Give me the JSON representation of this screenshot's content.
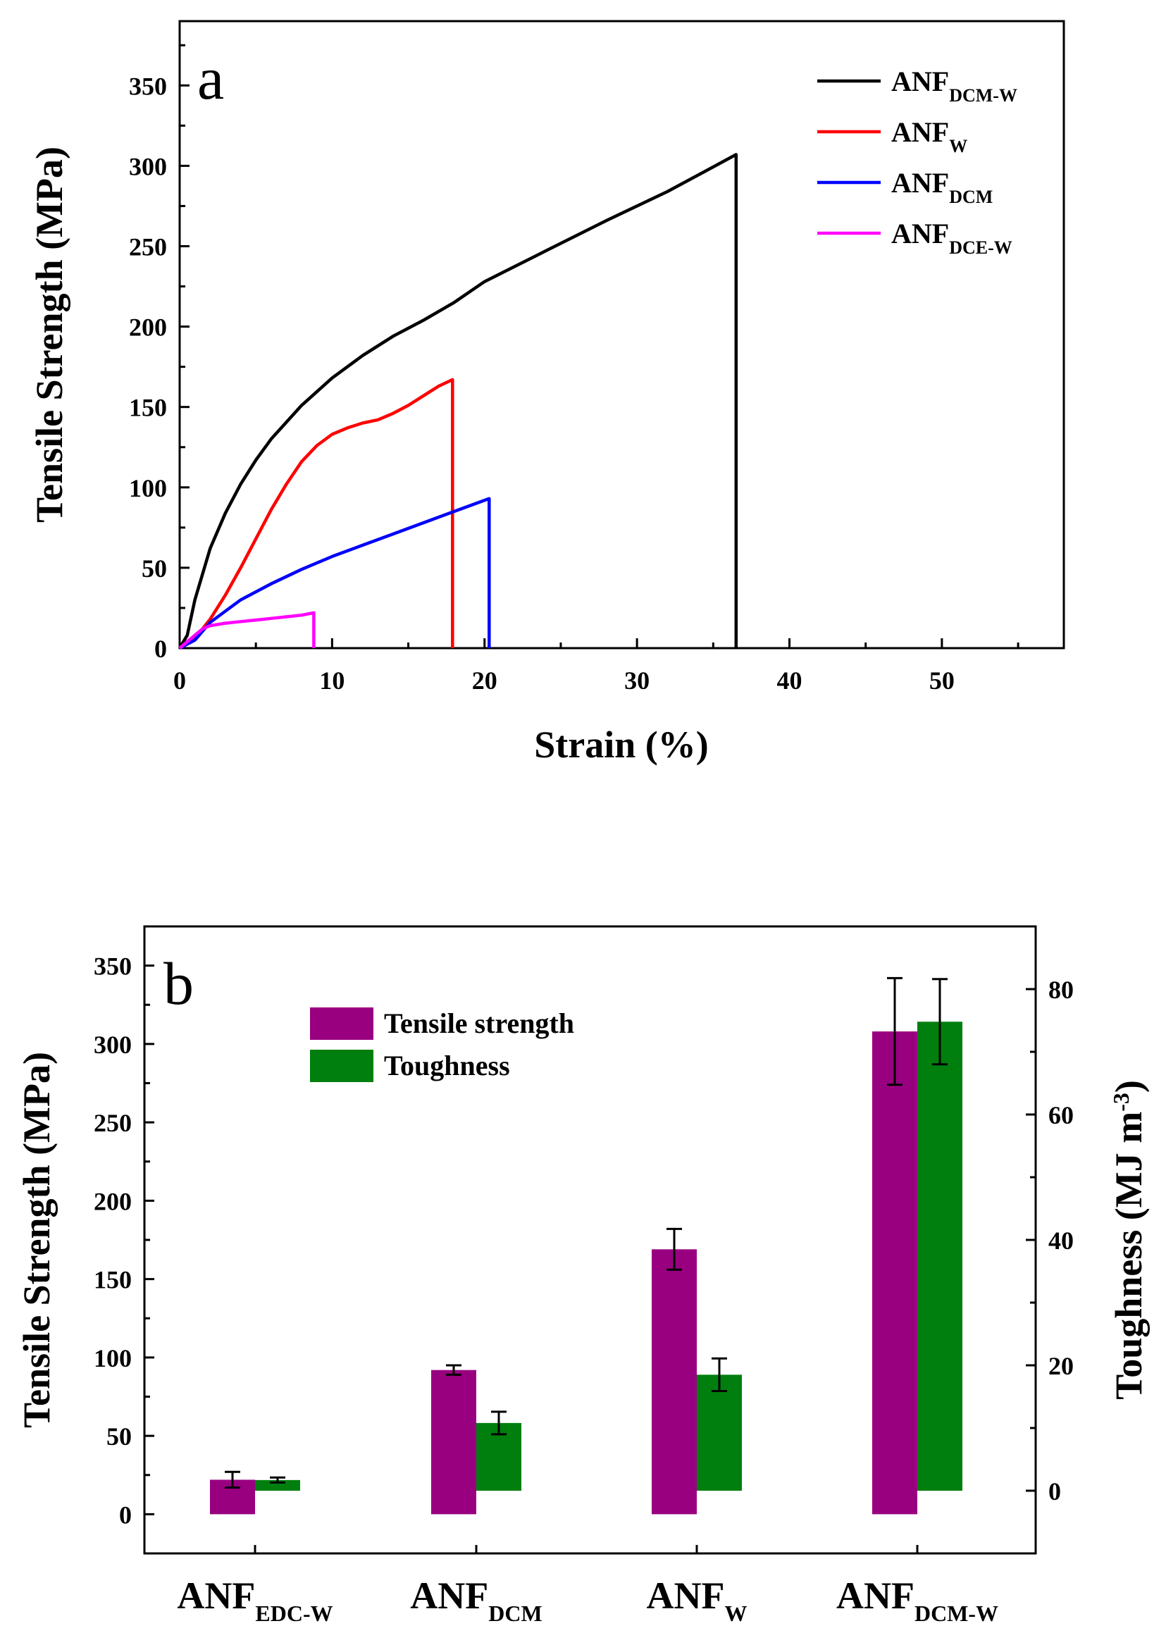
{
  "chart_data": [
    {
      "type": "line",
      "panel_label": "a",
      "xlabel": "Strain (%)",
      "ylabel": "Tensile Strength (MPa)",
      "xlim": [
        0,
        58
      ],
      "ylim": [
        0,
        390
      ],
      "xticks": [
        0,
        10,
        20,
        30,
        40,
        50
      ],
      "yticks": [
        0,
        50,
        100,
        150,
        200,
        250,
        300,
        350
      ],
      "xtick_labels": [
        "0",
        "10",
        "20",
        "30",
        "40",
        "50"
      ],
      "ytick_labels": [
        "0",
        "50",
        "100",
        "150",
        "200",
        "250",
        "300",
        "350"
      ],
      "legend_position": "top-right",
      "series": [
        {
          "name": "ANF",
          "subscript": "DCM-W",
          "color": "#000000",
          "x": [
            0,
            0.5,
            1,
            2,
            3,
            4,
            5,
            6,
            8,
            10,
            12,
            14,
            16,
            18,
            20,
            24,
            28,
            32,
            36.5,
            36.5
          ],
          "y": [
            0,
            8,
            30,
            62,
            84,
            102,
            117,
            130,
            151,
            168,
            182,
            194,
            204,
            215,
            228,
            247,
            266,
            284,
            307,
            0
          ]
        },
        {
          "name": "ANF",
          "subscript": "W",
          "color": "#ff0000",
          "x": [
            0,
            1,
            2,
            3,
            4,
            5,
            6,
            7,
            8,
            9,
            10,
            11,
            12,
            13,
            14,
            15,
            16,
            17,
            17.9,
            17.9
          ],
          "y": [
            0,
            6,
            18,
            33,
            50,
            68,
            86,
            102,
            116,
            126,
            133,
            137,
            140,
            142,
            146,
            151,
            157,
            163,
            167,
            0
          ]
        },
        {
          "name": "ANF",
          "subscript": "DCM",
          "color": "#0000ff",
          "x": [
            0,
            1,
            2,
            3,
            4,
            6,
            8,
            10,
            12,
            14,
            16,
            18,
            20.3,
            20.3
          ],
          "y": [
            0,
            5,
            16,
            23,
            30,
            40,
            49,
            57,
            64,
            71,
            78,
            85,
            93,
            0
          ]
        },
        {
          "name": "ANF",
          "subscript": "DCE-W",
          "color": "#ff00ff",
          "x": [
            0,
            0.5,
            1,
            1.5,
            2,
            3,
            4,
            5,
            6,
            7,
            8,
            8.8,
            8.8
          ],
          "y": [
            0,
            4,
            8,
            12,
            14,
            15.5,
            16.5,
            17.5,
            18.5,
            19.5,
            20.5,
            22,
            0
          ]
        }
      ]
    },
    {
      "type": "bar",
      "panel_label": "b",
      "ylabel_left": "Tensile Strength (MPa)",
      "ylabel_right": "Toughness (MJ m",
      "ylabel_right_sup": "-3",
      "ylabel_right_close": ")",
      "ylim_left": [
        -25,
        375
      ],
      "ylim_right": [
        -10,
        90
      ],
      "yticks_left": [
        0,
        50,
        100,
        150,
        200,
        250,
        300,
        350
      ],
      "ytick_labels_left": [
        "0",
        "50",
        "100",
        "150",
        "200",
        "250",
        "300",
        "350"
      ],
      "yticks_right": [
        0,
        20,
        40,
        60,
        80
      ],
      "ytick_labels_right": [
        "0",
        "20",
        "40",
        "60",
        "80"
      ],
      "legend_position": "top-left",
      "categories": [
        {
          "name": "ANF",
          "subscript": "EDC-W"
        },
        {
          "name": "ANF",
          "subscript": "DCM"
        },
        {
          "name": "ANF",
          "subscript": "W"
        },
        {
          "name": "ANF",
          "subscript": "DCM-W"
        }
      ],
      "series": [
        {
          "name": "Tensile strength",
          "axis": "left",
          "color": "#990080",
          "values": [
            22,
            92,
            169,
            308
          ],
          "errors": [
            5,
            3,
            13,
            34
          ]
        },
        {
          "name": "Toughness",
          "axis": "right",
          "color": "#007f0e",
          "values": [
            1.7,
            10.8,
            18.5,
            74.8
          ],
          "errors": [
            0.4,
            1.8,
            2.6,
            6.8
          ]
        }
      ]
    }
  ]
}
